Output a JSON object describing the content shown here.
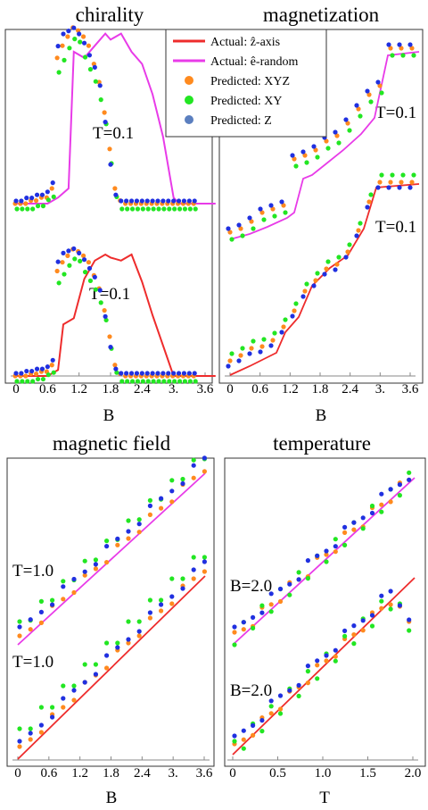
{
  "colors": {
    "actual_z": "#ee2c2c",
    "actual_e": "#e83be8",
    "pred_xyz": "#ff8a1e",
    "pred_xy": "#22e622",
    "pred_z": "#2030e0",
    "pred_z_legend": "#5b7fbf"
  },
  "legend": {
    "items": [
      {
        "label": "Actual: ẑ-axis",
        "kind": "line",
        "color": "#ee2c2c"
      },
      {
        "label": "Actual: ê-random",
        "kind": "line",
        "color": "#e83be8"
      },
      {
        "label": "Predicted: XYZ",
        "kind": "dot",
        "color": "#ff8a1e"
      },
      {
        "label": "Predicted: XY",
        "kind": "dot",
        "color": "#22e622"
      },
      {
        "label": "Predicted: Z",
        "kind": "dot",
        "color": "#5b7fbf"
      }
    ]
  },
  "chart_data": [
    {
      "type": "line",
      "title": "chirality",
      "xlabel": "B",
      "xticks": [
        "0",
        "0.6",
        "1.2",
        "1.8",
        "2.4",
        "3.",
        "3.6"
      ],
      "xlim": [
        -0.15,
        3.95
      ],
      "ylim": [
        0,
        1
      ],
      "series": [
        {
          "name": "Actual: ê-random",
          "kind": "line",
          "color": "#e83be8",
          "offset": 0.44,
          "annotation": "T=0.1",
          "x": [
            0,
            0.2,
            0.4,
            0.6,
            0.8,
            1.0,
            1.1,
            1.3,
            1.5,
            1.7,
            1.8,
            2.0,
            2.2,
            2.4,
            2.6,
            2.8,
            3.0,
            3.1,
            3.4,
            3.8
          ],
          "y": [
            0,
            0,
            0,
            0,
            0.02,
            0.05,
            0.5,
            0.48,
            0.52,
            0.56,
            0.54,
            0.56,
            0.5,
            0.46,
            0.36,
            0.22,
            0.02,
            0,
            0,
            0
          ]
        },
        {
          "name": "Actual: ẑ-axis",
          "kind": "line",
          "color": "#ee2c2c",
          "offset": 0.0,
          "annotation": "T=0.1",
          "x": [
            0,
            0.2,
            0.4,
            0.6,
            0.8,
            0.9,
            1.1,
            1.3,
            1.5,
            1.7,
            1.8,
            2.0,
            2.2,
            2.4,
            2.6,
            2.8,
            3.0,
            3.1,
            3.4,
            3.8
          ],
          "y": [
            0,
            0,
            0,
            0,
            0.02,
            0.17,
            0.19,
            0.32,
            0.38,
            0.4,
            0.39,
            0.38,
            0.4,
            0.31,
            0.2,
            0.1,
            0,
            0,
            0,
            0
          ]
        }
      ],
      "points": [
        {
          "group": 0,
          "x": [
            0,
            0.1,
            0.2,
            0.3,
            0.4,
            0.5,
            0.6,
            0.7,
            0.8,
            0.9,
            1.0,
            1.1,
            1.2,
            1.3,
            1.4,
            1.5,
            1.6,
            1.7,
            1.8,
            1.9,
            2.0,
            2.1,
            2.2,
            2.3,
            2.4,
            2.5,
            2.6,
            2.7,
            2.8,
            2.9,
            3.0,
            3.1,
            3.2,
            3.3,
            3.4
          ],
          "xyz": [
            0,
            0,
            0,
            0.01,
            0.01,
            0.02,
            0.02,
            0.05,
            0.48,
            0.52,
            0.55,
            0.58,
            0.57,
            0.55,
            0.52,
            0.46,
            0.4,
            0.3,
            0.18,
            0.05,
            0.01,
            0,
            0,
            0,
            0,
            0,
            0,
            0,
            0,
            0,
            0,
            0,
            0,
            0,
            0
          ],
          "xy": [
            0,
            0,
            0,
            0,
            0.01,
            0.01,
            0.03,
            0.04,
            0.45,
            0.49,
            0.53,
            0.56,
            0.55,
            0.5,
            0.46,
            0.42,
            0.36,
            0.28,
            0.15,
            0.04,
            0,
            0,
            0,
            0,
            0,
            0,
            0,
            0,
            0,
            0,
            0,
            0,
            0,
            0,
            0
          ],
          "z": [
            0,
            0,
            0.01,
            0.01,
            0.02,
            0.02,
            0.03,
            0.06,
            0.51,
            0.55,
            0.56,
            0.57,
            0.55,
            0.52,
            0.48,
            0.44,
            0.38,
            0.26,
            0.12,
            0.02,
            0,
            0,
            0,
            0,
            0,
            0,
            0,
            0,
            0,
            0,
            0,
            0,
            0,
            0,
            0
          ]
        }
      ]
    },
    {
      "type": "line",
      "title": "magnetization",
      "xlabel": "B",
      "xticks": [
        "0",
        "0.6",
        "1.2",
        "1.8",
        "2.4",
        "3.",
        "3.6"
      ],
      "annotations": [
        "T=0.1",
        "T=0.1"
      ]
    },
    {
      "type": "scatter",
      "title": "magnetic field",
      "xlabel": "B",
      "xticks": [
        "0",
        "0.6",
        "1.2",
        "1.8",
        "2.4",
        "3.",
        "3.6"
      ],
      "annotations": [
        "T=1.0",
        "T=1.0"
      ]
    },
    {
      "type": "scatter",
      "title": "temperature",
      "xlabel": "T",
      "xticks": [
        "0",
        "0.5",
        "1.0",
        "1.5",
        "2.0"
      ],
      "annotations": [
        "B=2.0",
        "B=2.0"
      ]
    }
  ]
}
